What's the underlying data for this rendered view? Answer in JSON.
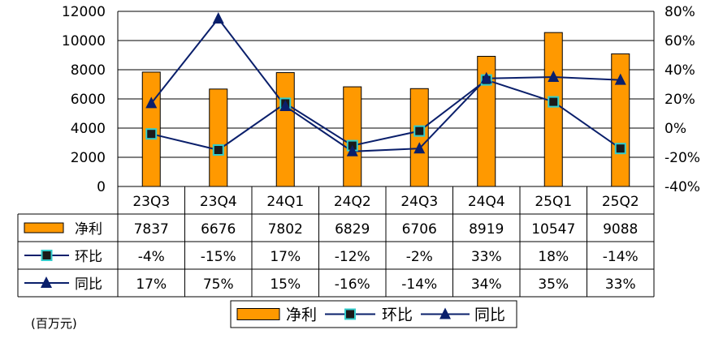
{
  "unit_label": "(百万元)",
  "colors": {
    "bar_fill": "#FF9900",
    "bar_stroke": "#000000",
    "line": "#0A1F6B",
    "hb_marker": "#1A1A1A",
    "hb_marker_edge": "#33CCCC",
    "yoy_marker": "#0A1F6B",
    "grid": "#000000"
  },
  "chart_data": {
    "type": "bar+line",
    "categories": [
      "23Q3",
      "23Q4",
      "24Q1",
      "24Q2",
      "24Q3",
      "24Q4",
      "25Q1",
      "25Q2"
    ],
    "left_axis": {
      "min": 0,
      "max": 12000,
      "ticks": [
        "0",
        "2000",
        "4000",
        "6000",
        "8000",
        "10000",
        "12000"
      ]
    },
    "right_axis": {
      "min": -40,
      "max": 80,
      "ticks": [
        "-40%",
        "-20%",
        "0%",
        "20%",
        "40%",
        "60%",
        "80%"
      ]
    },
    "grid": true,
    "series": [
      {
        "name": "净利",
        "kind": "bar",
        "axis": "left",
        "values": [
          7837,
          6676,
          7802,
          6829,
          6706,
          8919,
          10547,
          9088
        ],
        "labels": [
          "7837",
          "6676",
          "7802",
          "6829",
          "6706",
          "8919",
          "10547",
          "9088"
        ]
      },
      {
        "name": "环比",
        "kind": "line",
        "marker": "square",
        "axis": "right",
        "values": [
          -4,
          -15,
          17,
          -12,
          -2,
          33,
          18,
          -14
        ],
        "labels": [
          "-4%",
          "-15%",
          "17%",
          "-12%",
          "-2%",
          "33%",
          "18%",
          "-14%"
        ]
      },
      {
        "name": "同比",
        "kind": "line",
        "marker": "triangle",
        "axis": "right",
        "values": [
          17,
          75,
          15,
          -16,
          -14,
          34,
          35,
          33
        ],
        "labels": [
          "17%",
          "75%",
          "15%",
          "-16%",
          "-14%",
          "34%",
          "35%",
          "33%"
        ]
      }
    ],
    "legend": {
      "position": "bottom-center",
      "entries": [
        "净利",
        "环比",
        "同比"
      ]
    }
  }
}
